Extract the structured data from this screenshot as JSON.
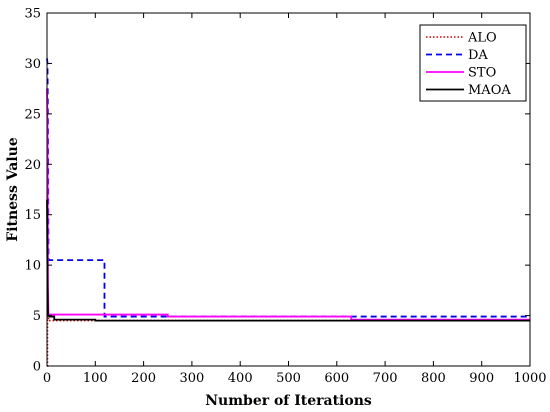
{
  "chart_data": {
    "type": "line",
    "xlabel": "Number of Iterations",
    "ylabel": "Fitness Value",
    "xlim": [
      0,
      1000
    ],
    "ylim": [
      0,
      35
    ],
    "xticks": [
      0,
      100,
      200,
      300,
      400,
      500,
      600,
      700,
      800,
      900,
      1000
    ],
    "yticks": [
      0,
      5,
      10,
      15,
      20,
      25,
      30,
      35
    ],
    "grid": false,
    "legend_position": "top-right",
    "series": [
      {
        "name": "ALO",
        "color": "#cc0000",
        "style": "dotted",
        "x": [
          0,
          1,
          1,
          3,
          3,
          1000
        ],
        "y": [
          0,
          0,
          5.1,
          5.1,
          4.5,
          4.5
        ]
      },
      {
        "name": "DA",
        "color": "#0000ee",
        "style": "dashed",
        "x": [
          0,
          1,
          2,
          3,
          4,
          6,
          119,
          119,
          125,
          125,
          1000
        ],
        "y": [
          30.5,
          30.0,
          24.0,
          10.8,
          10.5,
          10.5,
          10.5,
          4.9,
          4.9,
          4.9,
          4.9
        ]
      },
      {
        "name": "STO",
        "color": "#ff00ff",
        "style": "solid",
        "x": [
          0,
          1,
          2,
          3,
          4,
          6,
          250,
          250,
          630,
          630,
          1000
        ],
        "y": [
          27.5,
          24.0,
          8.0,
          5.2,
          5.1,
          5.1,
          5.1,
          4.9,
          4.9,
          4.6,
          4.6
        ]
      },
      {
        "name": "MAOA",
        "color": "#000000",
        "style": "solid",
        "x": [
          0,
          1,
          2,
          3,
          5,
          15,
          15,
          100,
          100,
          1000
        ],
        "y": [
          16.5,
          8.0,
          5.2,
          5.0,
          4.9,
          4.9,
          4.6,
          4.6,
          4.5,
          4.5
        ]
      }
    ]
  }
}
